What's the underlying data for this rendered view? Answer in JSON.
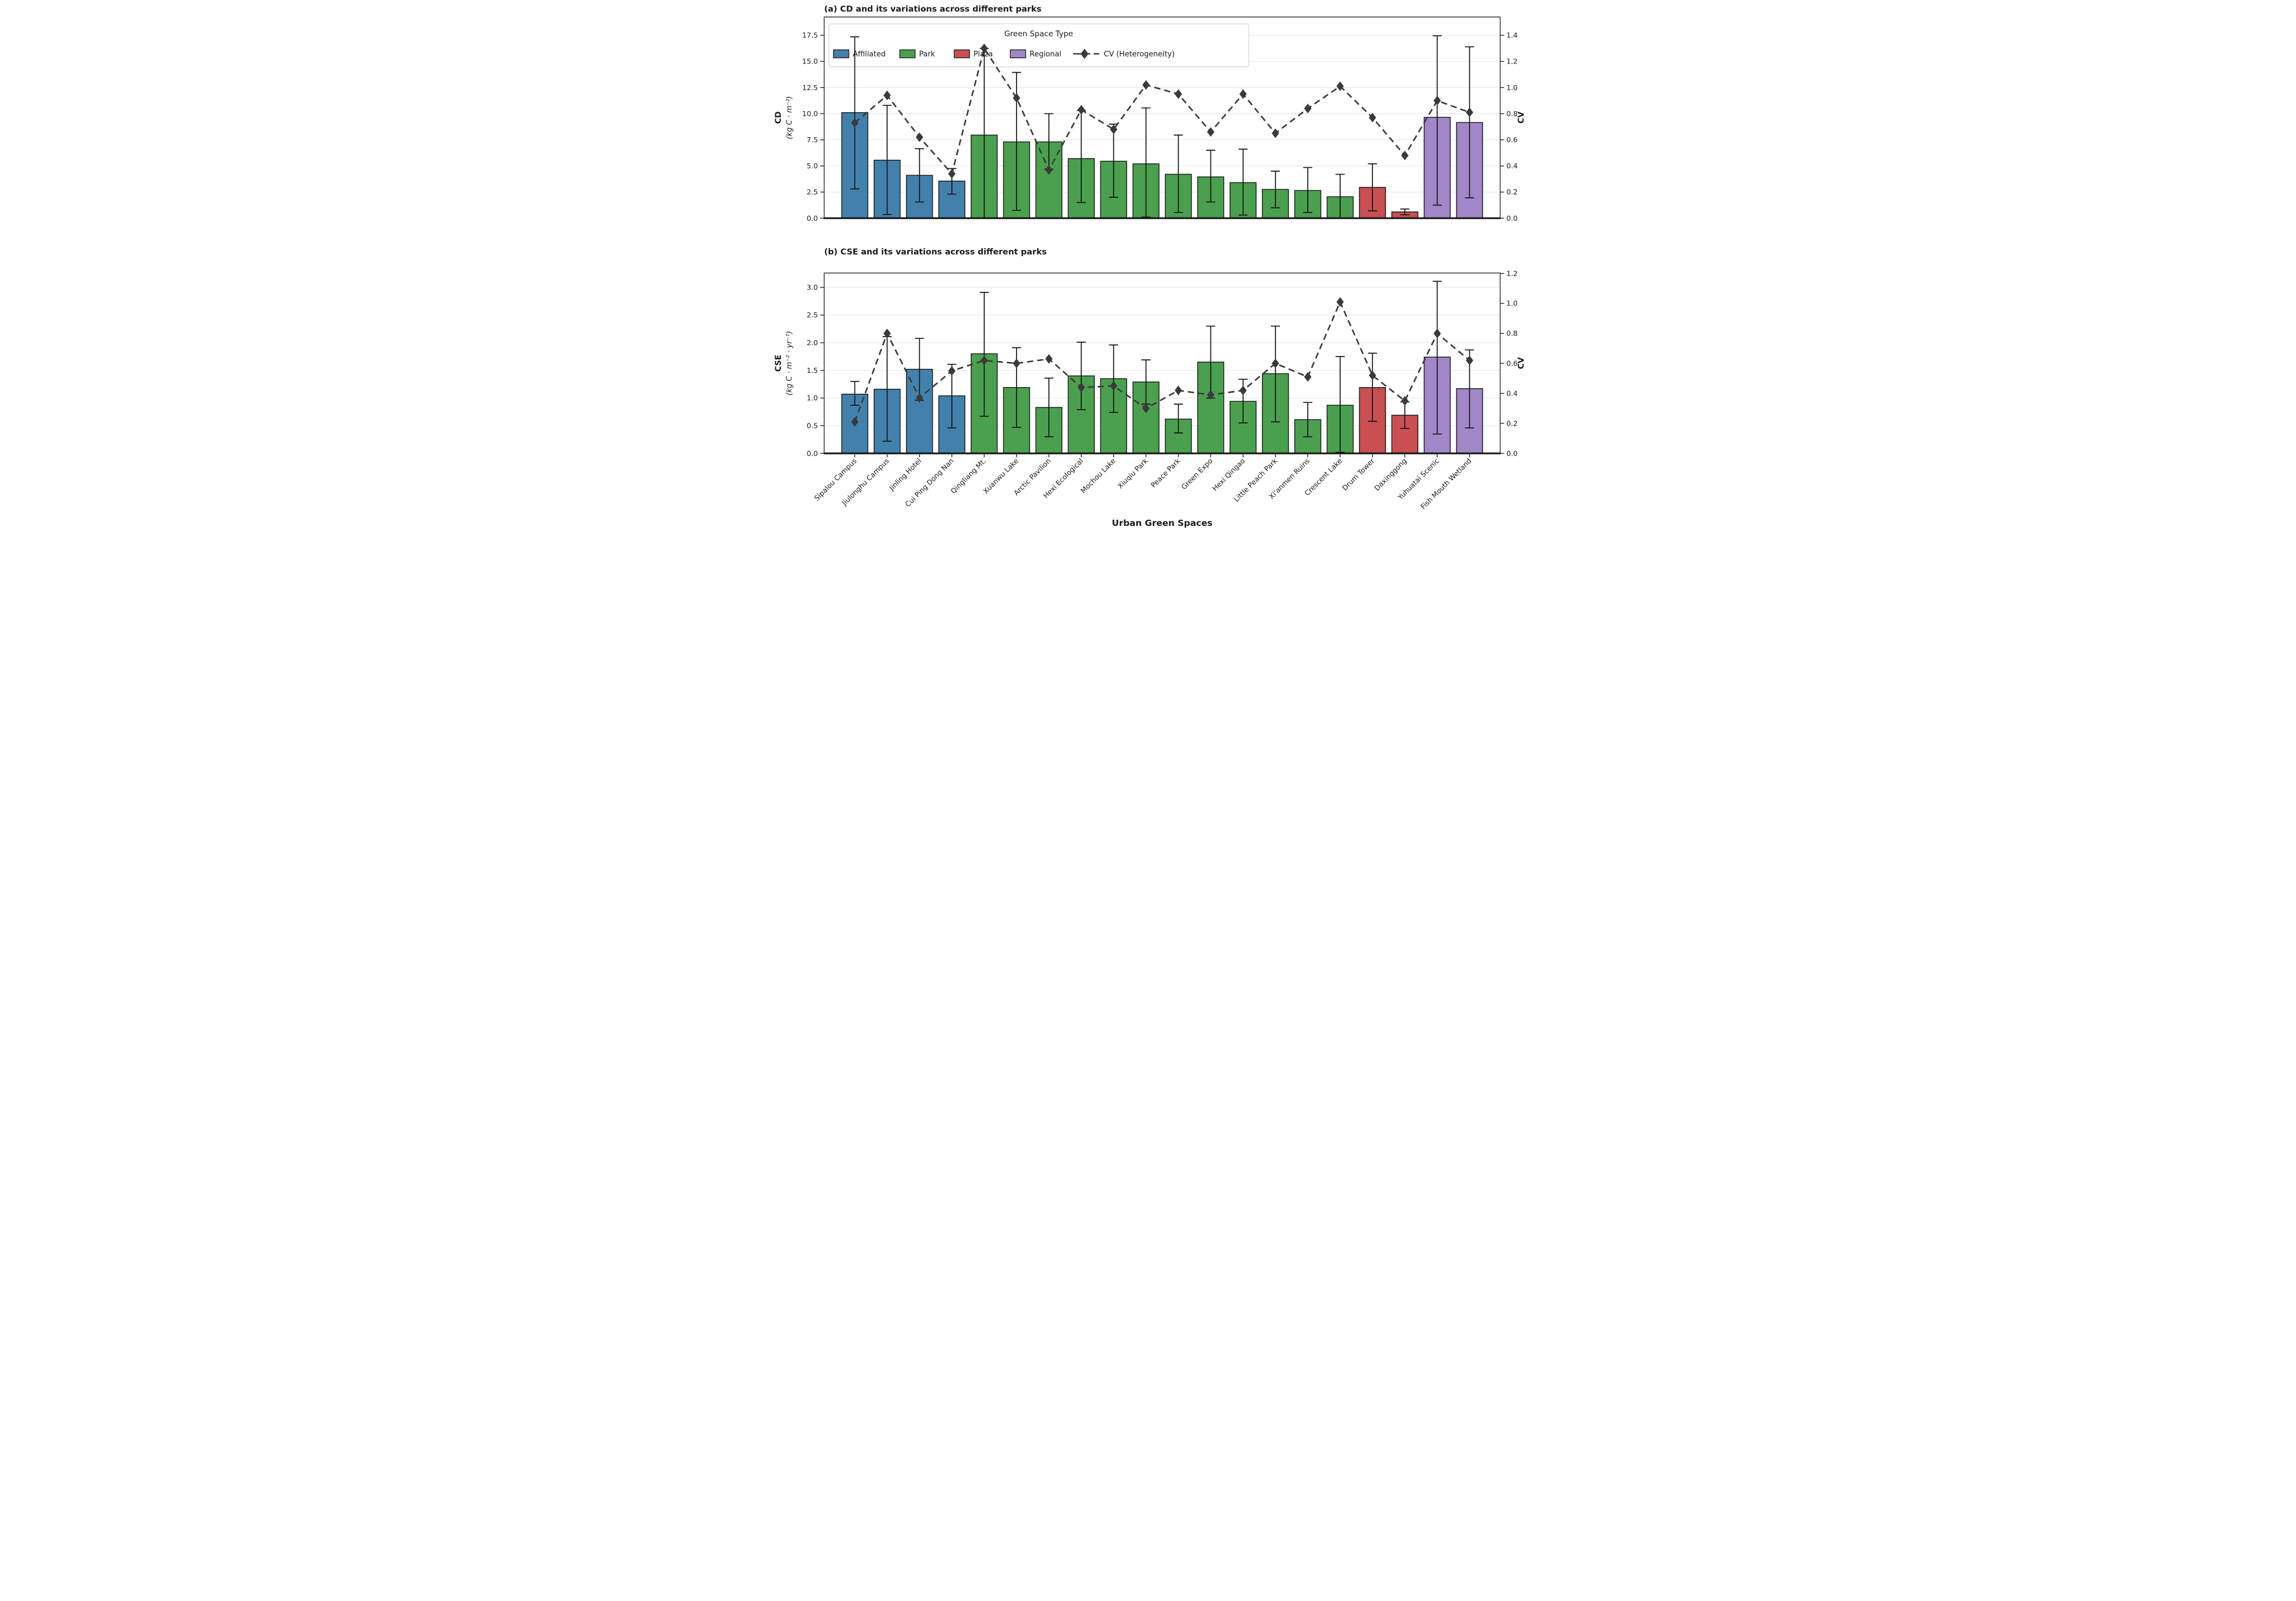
{
  "figure": {
    "xlabel": "Urban Green Spaces",
    "legend": {
      "title": "Green Space Type",
      "items": [
        {
          "label": "Affiliated",
          "color": "#4381ad"
        },
        {
          "label": "Park",
          "color": "#4ba04f"
        },
        {
          "label": "Plaza",
          "color": "#c84f52"
        },
        {
          "label": "Regional",
          "color": "#a287c8"
        }
      ],
      "cv_label": "CV (Heterogeneity)",
      "cv_color": "#3a3a3a"
    },
    "colors": {
      "bar_edge": "#1c1c1c",
      "error_bar": "#111111",
      "cv_line": "#3a3a3a",
      "grid": "#e7e7e7",
      "spine": "#262626"
    }
  },
  "chart_data": [
    {
      "type": "bar",
      "panel": "a",
      "title": "(a) CD and its variations across different parks",
      "ylabel_main": "CD",
      "ylabel_units": "(kg C · m⁻²)",
      "right_axis_label": "CV",
      "legend_position": "upper left, inside plot",
      "grid": "horizontal, at left-axis ticks",
      "ylim": [
        0,
        19.25
      ],
      "yticks": [
        0.0,
        2.5,
        5.0,
        7.5,
        10.0,
        12.5,
        15.0,
        17.5
      ],
      "right_ylim": [
        0,
        1.54
      ],
      "right_yticks": [
        0.0,
        0.2,
        0.4,
        0.6,
        0.8,
        1.0,
        1.2,
        1.4
      ],
      "categories": [
        "Sipalou Campus",
        "Jiulonghu Campus",
        "Jinling Hotel",
        "Cui Ping Dong Nan",
        "Qingliang Mt.",
        "Xuanwu Lake",
        "Arctic Pavilion",
        "Hexi Ecological",
        "Mochou Lake",
        "Xiuqiu Park",
        "Peace Park",
        "Green Expo",
        "Hexi Qingao",
        "Little Peach Park",
        "Xi'anmen Ruins",
        "Crescent Lake",
        "Drum Tower",
        "Daxinggong",
        "Yuhuatai Scenic",
        "Fish Mouth Wetland"
      ],
      "category_types": [
        "Affiliated",
        "Affiliated",
        "Affiliated",
        "Affiliated",
        "Park",
        "Park",
        "Park",
        "Park",
        "Park",
        "Park",
        "Park",
        "Park",
        "Park",
        "Park",
        "Park",
        "Park",
        "Plaza",
        "Plaza",
        "Regional",
        "Regional"
      ],
      "series": [
        {
          "name": "CD (kg C · m⁻²)",
          "values": [
            10.1,
            5.55,
            4.1,
            3.55,
            7.95,
            7.3,
            7.3,
            5.7,
            5.45,
            5.2,
            4.2,
            3.95,
            3.4,
            2.75,
            2.65,
            2.05,
            2.95,
            0.6,
            9.65,
            9.15
          ]
        },
        {
          "name": "error_upper",
          "values": [
            17.35,
            10.8,
            6.65,
            4.75,
            16.25,
            13.95,
            10.0,
            10.3,
            9.0,
            10.55,
            7.95,
            6.5,
            6.6,
            4.5,
            4.85,
            4.2,
            5.2,
            0.88,
            17.45,
            16.4
          ]
        },
        {
          "name": "error_lower",
          "values": [
            2.8,
            0.35,
            1.55,
            2.3,
            0.0,
            0.75,
            4.7,
            1.5,
            2.0,
            0.1,
            0.55,
            1.55,
            0.3,
            1.0,
            0.55,
            0.0,
            0.7,
            0.33,
            1.25,
            1.95
          ]
        },
        {
          "name": "CV (Heterogeneity)",
          "values": [
            0.73,
            0.94,
            0.62,
            0.34,
            1.3,
            0.92,
            0.37,
            0.83,
            0.68,
            1.02,
            0.95,
            0.66,
            0.95,
            0.65,
            0.84,
            1.01,
            0.77,
            0.48,
            0.9,
            0.81
          ]
        }
      ]
    },
    {
      "type": "bar",
      "panel": "b",
      "title": "(b) CSE and its variations across different parks",
      "ylabel_main": "CSE",
      "ylabel_units": "(kg C · m⁻² · yr⁻¹)",
      "right_axis_label": "CV",
      "grid": "horizontal, at left-axis ticks",
      "ylim": [
        0,
        3.26
      ],
      "yticks": [
        0.0,
        0.5,
        1.0,
        1.5,
        2.0,
        2.5,
        3.0
      ],
      "right_ylim": [
        0,
        1.203
      ],
      "right_yticks": [
        0.0,
        0.2,
        0.4,
        0.6,
        0.8,
        1.0,
        1.2
      ],
      "categories": [
        "Sipalou Campus",
        "Jiulonghu Campus",
        "Jinling Hotel",
        "Cui Ping Dong Nan",
        "Qingliang Mt.",
        "Xuanwu Lake",
        "Arctic Pavilion",
        "Hexi Ecological",
        "Mochou Lake",
        "Xiuqiu Park",
        "Peace Park",
        "Green Expo",
        "Hexi Qingao",
        "Little Peach Park",
        "Xi'anmen Ruins",
        "Crescent Lake",
        "Drum Tower",
        "Daxinggong",
        "Yuhuatai Scenic",
        "Fish Mouth Wetland"
      ],
      "category_types": [
        "Affiliated",
        "Affiliated",
        "Affiliated",
        "Affiliated",
        "Park",
        "Park",
        "Park",
        "Park",
        "Park",
        "Park",
        "Park",
        "Park",
        "Park",
        "Park",
        "Park",
        "Park",
        "Plaza",
        "Plaza",
        "Regional",
        "Regional"
      ],
      "series": [
        {
          "name": "CSE (kg C · m⁻² · yr⁻¹)",
          "values": [
            1.07,
            1.16,
            1.52,
            1.04,
            1.8,
            1.19,
            0.83,
            1.4,
            1.35,
            1.29,
            0.62,
            1.65,
            0.94,
            1.44,
            0.61,
            0.87,
            1.19,
            0.69,
            1.74,
            1.17
          ]
        },
        {
          "name": "error_upper",
          "values": [
            1.3,
            2.11,
            2.08,
            1.61,
            2.91,
            1.91,
            1.36,
            2.01,
            1.96,
            1.69,
            0.89,
            2.3,
            1.34,
            2.3,
            0.92,
            1.75,
            1.81,
            0.93,
            3.11,
            1.87
          ]
        },
        {
          "name": "error_lower",
          "values": [
            0.87,
            0.22,
            0.96,
            0.46,
            0.67,
            0.47,
            0.3,
            0.79,
            0.74,
            0.89,
            0.37,
            1.0,
            0.55,
            0.57,
            0.3,
            0.02,
            0.58,
            0.45,
            0.35,
            0.46
          ]
        },
        {
          "name": "CV (Heterogeneity)",
          "values": [
            0.21,
            0.8,
            0.37,
            0.55,
            0.62,
            0.6,
            0.63,
            0.44,
            0.45,
            0.3,
            0.42,
            0.39,
            0.42,
            0.6,
            0.51,
            1.01,
            0.52,
            0.35,
            0.8,
            0.62
          ]
        }
      ]
    }
  ]
}
